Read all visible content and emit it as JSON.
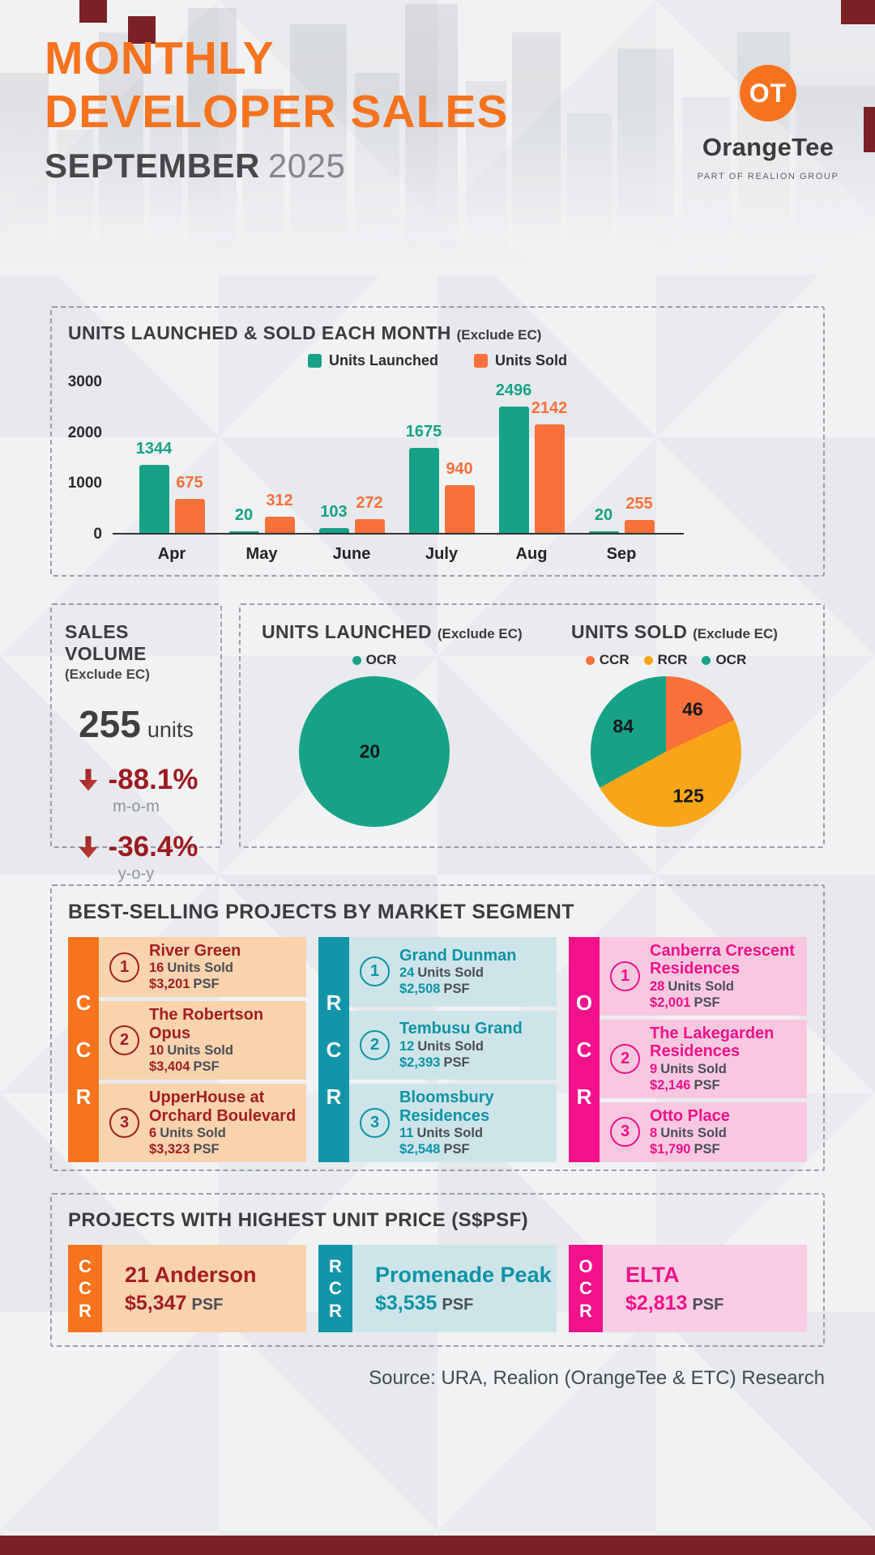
{
  "header": {
    "title_line1": "MONTHLY",
    "title_line2": "DEVELOPER SALES",
    "month": "SEPTEMBER",
    "year": "2025",
    "logo_monogram": "OT",
    "logo_name": "OrangeTee",
    "logo_tagline": "PART OF REALION GROUP"
  },
  "colors": {
    "brand_orange": "#f5731e",
    "chart_teal": "#17a287",
    "chart_orange": "#f8703a",
    "chart_amber": "#f9a51a",
    "magenta": "#f3118c",
    "rcr_teal": "#1295a8",
    "ccr_maroon": "#a31e22",
    "negative_red": "#9c1b20",
    "decor_maroon": "#7a2125"
  },
  "chart_data": [
    {
      "id": "monthly_bars",
      "type": "bar",
      "title": "UNITS LAUNCHED & SOLD EACH MONTH",
      "title_note": "(Exclude EC)",
      "categories": [
        "Apr",
        "May",
        "June",
        "July",
        "Aug",
        "Sep"
      ],
      "series": [
        {
          "name": "Units Launched",
          "color": "#17a287",
          "values": [
            1344,
            20,
            103,
            1675,
            2496,
            20
          ]
        },
        {
          "name": "Units Sold",
          "color": "#f8703a",
          "values": [
            675,
            312,
            272,
            940,
            2142,
            255
          ]
        }
      ],
      "ylim": [
        0,
        3000
      ],
      "yticks": [
        0,
        1000,
        2000,
        3000
      ],
      "legend_position": "top",
      "grid": false
    },
    {
      "id": "launched_pie",
      "type": "pie",
      "title": "UNITS LAUNCHED",
      "title_note": "(Exclude EC)",
      "slices": [
        {
          "label": "OCR",
          "value": 20,
          "color": "#17a287"
        }
      ]
    },
    {
      "id": "sold_pie",
      "type": "pie",
      "title": "UNITS SOLD",
      "title_note": "(Exclude EC)",
      "slices": [
        {
          "label": "CCR",
          "value": 46,
          "color": "#f8703a"
        },
        {
          "label": "RCR",
          "value": 125,
          "color": "#f9a51a"
        },
        {
          "label": "OCR",
          "value": 84,
          "color": "#17a287"
        }
      ],
      "start_angle_deg": 0
    }
  ],
  "sales_volume": {
    "title": "SALES VOLUME",
    "note": "(Exclude EC)",
    "value": "255",
    "value_unit": "units",
    "changes": [
      {
        "value": "-88.1%",
        "label": "m-o-m",
        "direction": "down"
      },
      {
        "value": "-36.4%",
        "label": "y-o-y",
        "direction": "down"
      }
    ]
  },
  "best_selling": {
    "title": "BEST-SELLING PROJECTS BY MARKET SEGMENT",
    "segments": [
      {
        "code": "CCR",
        "letters": [
          "C",
          "C",
          "R"
        ],
        "items": [
          {
            "rank": "1",
            "name": "River Green",
            "units": "16",
            "units_label": "Units Sold",
            "price": "$3,201",
            "price_label": "PSF"
          },
          {
            "rank": "2",
            "name": "The Robertson Opus",
            "units": "10",
            "units_label": "Units Sold",
            "price": "$3,404",
            "price_label": "PSF"
          },
          {
            "rank": "3",
            "name": "UpperHouse at Orchard Boulevard",
            "units": "6",
            "units_label": "Units Sold",
            "price": "$3,323",
            "price_label": "PSF"
          }
        ]
      },
      {
        "code": "RCR",
        "letters": [
          "R",
          "C",
          "R"
        ],
        "items": [
          {
            "rank": "1",
            "name": "Grand Dunman",
            "units": "24",
            "units_label": "Units Sold",
            "price": "$2,508",
            "price_label": "PSF"
          },
          {
            "rank": "2",
            "name": "Tembusu Grand",
            "units": "12",
            "units_label": "Units Sold",
            "price": "$2,393",
            "price_label": "PSF"
          },
          {
            "rank": "3",
            "name": "Bloomsbury Residences",
            "units": "11",
            "units_label": "Units Sold",
            "price": "$2,548",
            "price_label": "PSF"
          }
        ]
      },
      {
        "code": "OCR",
        "letters": [
          "O",
          "C",
          "R"
        ],
        "items": [
          {
            "rank": "1",
            "name": "Canberra Crescent Residences",
            "units": "28",
            "units_label": "Units Sold",
            "price": "$2,001",
            "price_label": "PSF"
          },
          {
            "rank": "2",
            "name": "The Lakegarden Residences",
            "units": "9",
            "units_label": "Units Sold",
            "price": "$2,146",
            "price_label": "PSF"
          },
          {
            "rank": "3",
            "name": "Otto Place",
            "units": "8",
            "units_label": "Units Sold",
            "price": "$1,790",
            "price_label": "PSF"
          }
        ]
      }
    ]
  },
  "highest_price": {
    "title": "PROJECTS WITH HIGHEST UNIT PRICE (S$PSF)",
    "cards": [
      {
        "code": "CCR",
        "letters": [
          "C",
          "C",
          "R"
        ],
        "name": "21 Anderson",
        "price": "$5,347",
        "price_label": "PSF"
      },
      {
        "code": "RCR",
        "letters": [
          "R",
          "C",
          "R"
        ],
        "name": "Promenade Peak",
        "price": "$3,535",
        "price_label": "PSF"
      },
      {
        "code": "OCR",
        "letters": [
          "O",
          "C",
          "R"
        ],
        "name": "ELTA",
        "price": "$2,813",
        "price_label": "PSF"
      }
    ]
  },
  "source": "Source: URA, Realion (OrangeTee & ETC) Research"
}
